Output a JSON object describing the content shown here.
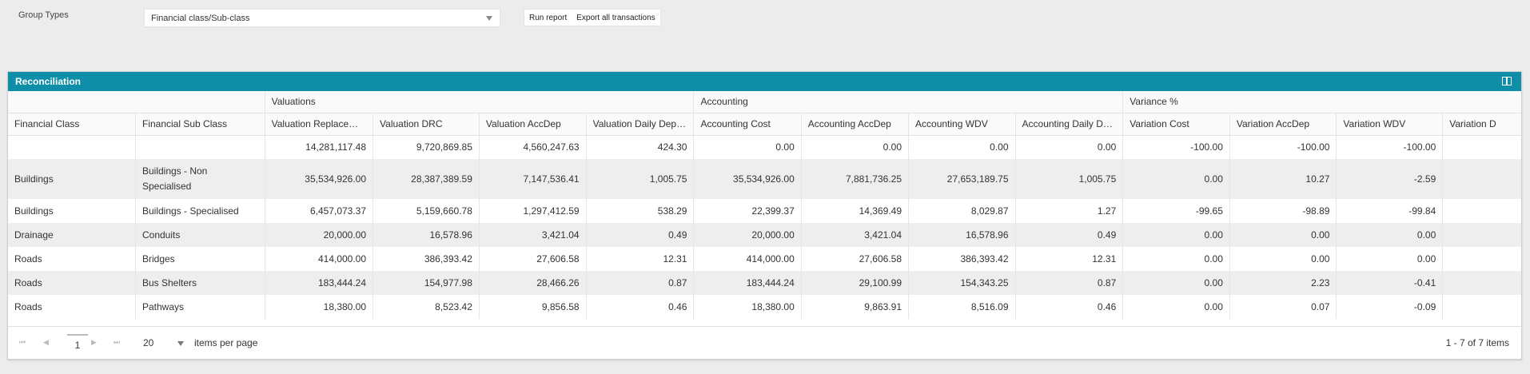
{
  "toolbar": {
    "group_types_label": "Group Types",
    "group_types_value": "Financial class/Sub-class",
    "run_report_label": "Run report",
    "export_label": "Export all transactions"
  },
  "panel": {
    "title": "Reconciliation"
  },
  "grid": {
    "groups": {
      "valuations": "Valuations",
      "accounting": "Accounting",
      "variance": "Variance %"
    },
    "columns": [
      "Financial Class",
      "Financial Sub Class",
      "Valuation Replace…",
      "Valuation DRC",
      "Valuation AccDep",
      "Valuation Daily Dep…",
      "Accounting Cost",
      "Accounting AccDep",
      "Accounting WDV",
      "Accounting Daily D…",
      "Variation Cost",
      "Variation AccDep",
      "Variation WDV",
      "Variation D"
    ],
    "rows": [
      [
        "",
        "",
        "14,281,117.48",
        "9,720,869.85",
        "4,560,247.63",
        "424.30",
        "0.00",
        "0.00",
        "0.00",
        "0.00",
        "-100.00",
        "-100.00",
        "-100.00",
        ""
      ],
      [
        "Buildings",
        "Buildings - Non Specialised",
        "35,534,926.00",
        "28,387,389.59",
        "7,147,536.41",
        "1,005.75",
        "35,534,926.00",
        "7,881,736.25",
        "27,653,189.75",
        "1,005.75",
        "0.00",
        "10.27",
        "-2.59",
        ""
      ],
      [
        "Buildings",
        "Buildings - Specialised",
        "6,457,073.37",
        "5,159,660.78",
        "1,297,412.59",
        "538.29",
        "22,399.37",
        "14,369.49",
        "8,029.87",
        "1.27",
        "-99.65",
        "-98.89",
        "-99.84",
        ""
      ],
      [
        "Drainage",
        "Conduits",
        "20,000.00",
        "16,578.96",
        "3,421.04",
        "0.49",
        "20,000.00",
        "3,421.04",
        "16,578.96",
        "0.49",
        "0.00",
        "0.00",
        "0.00",
        ""
      ],
      [
        "Roads",
        "Bridges",
        "414,000.00",
        "386,393.42",
        "27,606.58",
        "12.31",
        "414,000.00",
        "27,606.58",
        "386,393.42",
        "12.31",
        "0.00",
        "0.00",
        "0.00",
        ""
      ],
      [
        "Roads",
        "Bus Shelters",
        "183,444.24",
        "154,977.98",
        "28,466.26",
        "0.87",
        "183,444.24",
        "29,100.99",
        "154,343.25",
        "0.87",
        "0.00",
        "2.23",
        "-0.41",
        ""
      ],
      [
        "Roads",
        "Pathways",
        "18,380.00",
        "8,523.42",
        "9,856.58",
        "0.46",
        "18,380.00",
        "9,863.91",
        "8,516.09",
        "0.46",
        "0.00",
        "0.07",
        "-0.09",
        ""
      ]
    ]
  },
  "pager": {
    "first": "⏮",
    "prev": "◀",
    "page": "1",
    "next": "▶",
    "last": "⏭",
    "per_page": "20",
    "per_page_label": "items per page",
    "summary": "1 - 7 of 7 items"
  }
}
